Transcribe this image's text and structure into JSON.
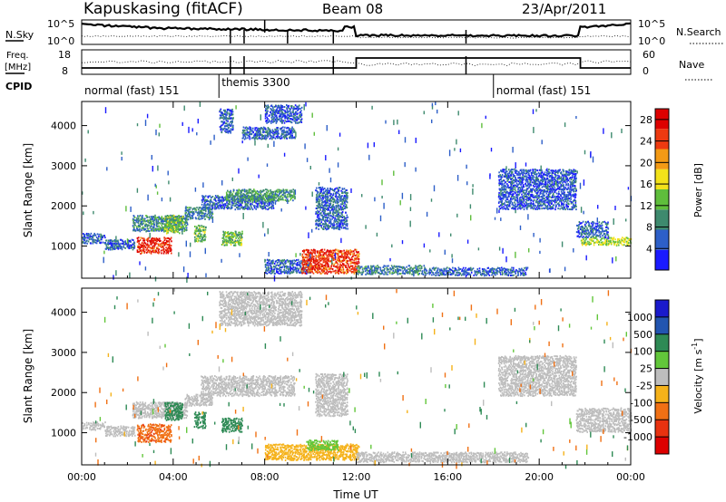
{
  "header": {
    "station": "Kapuskasing (fitACF)",
    "beam": "Beam 08",
    "date": "23/Apr/2011"
  },
  "noise_panel": {
    "left_label": "N.Sky",
    "right_label": "N.Search",
    "left_ticks": [
      "10^5",
      "10^0"
    ],
    "right_ticks": [
      "10^5",
      "10^0"
    ]
  },
  "freq_panel": {
    "left_label_line1": "Freq.",
    "left_label_line2": "[MHz]",
    "right_label": "Nave",
    "left_ticks": [
      "18",
      "8"
    ],
    "right_ticks": [
      "60",
      "0"
    ]
  },
  "cpid": {
    "label": "CPID",
    "segments": [
      {
        "name": "normal (fast) 151",
        "start_hour": 0,
        "end_hour": 6
      },
      {
        "name": "themis 3300",
        "start_hour": 6,
        "end_hour": 18
      },
      {
        "name": "normal (fast) 151",
        "start_hour": 18,
        "end_hour": 24
      }
    ]
  },
  "chart_data": [
    {
      "type": "heatmap",
      "name": "power",
      "ylabel": "Slant Range [km]",
      "xlabel": "",
      "xlim": [
        0,
        24
      ],
      "ylim": [
        200,
        4600
      ],
      "yticks": [
        1000,
        2000,
        3000,
        4000
      ],
      "colorbar": {
        "label": "Power [dB]",
        "ticks": [
          "4",
          "8",
          "12",
          "16",
          "20",
          "24",
          "28"
        ],
        "range": [
          0,
          30
        ],
        "colors": [
          "#1a1aff",
          "#2d5fc8",
          "#3e8a6e",
          "#5fbe3c",
          "#f2e21a",
          "#f39a15",
          "#ee3a10",
          "#dd0000"
        ]
      },
      "regions": [
        {
          "t0": 0.0,
          "t1": 1.0,
          "r0": 1050,
          "r1": 1300,
          "level": 6
        },
        {
          "t0": 1.0,
          "t1": 2.3,
          "r0": 900,
          "r1": 1150,
          "level": 6
        },
        {
          "t0": 2.4,
          "t1": 3.9,
          "r0": 800,
          "r1": 1200,
          "level": 26
        },
        {
          "t0": 2.2,
          "t1": 4.6,
          "r0": 1350,
          "r1": 1750,
          "level": 9
        },
        {
          "t0": 3.6,
          "t1": 4.4,
          "r0": 1300,
          "r1": 1750,
          "level": 13
        },
        {
          "t0": 4.5,
          "t1": 5.7,
          "r0": 1650,
          "r1": 1950,
          "level": 8
        },
        {
          "t0": 4.9,
          "t1": 5.4,
          "r0": 1100,
          "r1": 1500,
          "level": 12
        },
        {
          "t0": 5.2,
          "t1": 8.4,
          "r0": 1900,
          "r1": 2250,
          "level": 6
        },
        {
          "t0": 6.3,
          "t1": 9.3,
          "r0": 2100,
          "r1": 2400,
          "level": 10
        },
        {
          "t0": 6.1,
          "t1": 7.0,
          "r0": 1000,
          "r1": 1350,
          "level": 13
        },
        {
          "t0": 6.0,
          "t1": 6.6,
          "r0": 3800,
          "r1": 4400,
          "level": 6
        },
        {
          "t0": 7.0,
          "t1": 9.3,
          "r0": 3650,
          "r1": 3950,
          "level": 6
        },
        {
          "t0": 8.0,
          "t1": 9.6,
          "r0": 4050,
          "r1": 4500,
          "level": 5
        },
        {
          "t0": 10.2,
          "t1": 11.6,
          "r0": 1400,
          "r1": 2450,
          "level": 6
        },
        {
          "t0": 8.0,
          "t1": 10.0,
          "r0": 300,
          "r1": 650,
          "level": 6
        },
        {
          "t0": 9.6,
          "t1": 12.1,
          "r0": 300,
          "r1": 900,
          "level": 25
        },
        {
          "t0": 12.0,
          "t1": 15.0,
          "r0": 280,
          "r1": 500,
          "level": 8
        },
        {
          "t0": 15.0,
          "t1": 19.5,
          "r0": 250,
          "r1": 450,
          "level": 6
        },
        {
          "t0": 18.2,
          "t1": 21.6,
          "r0": 1900,
          "r1": 2900,
          "level": 5
        },
        {
          "t0": 21.6,
          "t1": 23.0,
          "r0": 1200,
          "r1": 1600,
          "level": 6
        },
        {
          "t0": 21.8,
          "t1": 24.0,
          "r0": 1000,
          "r1": 1200,
          "level": 15
        }
      ]
    },
    {
      "type": "heatmap",
      "name": "velocity",
      "ylabel": "Slant Range [km]",
      "xlabel": "Time UT",
      "xticks": [
        "00:00",
        "04:00",
        "08:00",
        "12:00",
        "16:00",
        "20:00",
        "00:00"
      ],
      "xlim": [
        0,
        24
      ],
      "ylim": [
        200,
        4600
      ],
      "yticks": [
        1000,
        2000,
        3000,
        4000
      ],
      "colorbar": {
        "label": "Velocity [m s^-1]",
        "ticks": [
          "1000",
          "500",
          "100",
          "25",
          "-25",
          "-100",
          "-500",
          "-1000"
        ],
        "colors": [
          "#1a1acc",
          "#2255b0",
          "#2e8a55",
          "#62c63a",
          "#bdbdbd",
          "#f5b21a",
          "#f07014",
          "#e83210",
          "#dd0000"
        ]
      },
      "regions": [
        {
          "t0": 0.0,
          "t1": 1.0,
          "r0": 1050,
          "r1": 1250,
          "level": 0
        },
        {
          "t0": 1.0,
          "t1": 2.3,
          "r0": 900,
          "r1": 1150,
          "level": 0
        },
        {
          "t0": 2.4,
          "t1": 3.9,
          "r0": 750,
          "r1": 1200,
          "level": -400
        },
        {
          "t0": 2.2,
          "t1": 4.6,
          "r0": 1350,
          "r1": 1750,
          "level": 0
        },
        {
          "t0": 3.6,
          "t1": 4.4,
          "r0": 1300,
          "r1": 1750,
          "level": 300
        },
        {
          "t0": 4.5,
          "t1": 5.7,
          "r0": 1650,
          "r1": 1950,
          "level": 0
        },
        {
          "t0": 4.9,
          "t1": 5.4,
          "r0": 1100,
          "r1": 1500,
          "level": 300
        },
        {
          "t0": 5.2,
          "t1": 9.3,
          "r0": 1900,
          "r1": 2400,
          "level": 0
        },
        {
          "t0": 6.1,
          "t1": 7.0,
          "r0": 1000,
          "r1": 1350,
          "level": 300
        },
        {
          "t0": 6.0,
          "t1": 9.6,
          "r0": 3650,
          "r1": 4500,
          "level": 0
        },
        {
          "t0": 10.2,
          "t1": 11.6,
          "r0": 1400,
          "r1": 2450,
          "level": 0
        },
        {
          "t0": 8.0,
          "t1": 12.1,
          "r0": 300,
          "r1": 700,
          "level": -60
        },
        {
          "t0": 9.8,
          "t1": 11.2,
          "r0": 550,
          "r1": 800,
          "level": 60
        },
        {
          "t0": 12.0,
          "t1": 19.5,
          "r0": 250,
          "r1": 500,
          "level": 0
        },
        {
          "t0": 18.2,
          "t1": 21.6,
          "r0": 1900,
          "r1": 2900,
          "level": 0
        },
        {
          "t0": 21.6,
          "t1": 24.0,
          "r0": 1000,
          "r1": 1600,
          "level": 0
        }
      ]
    }
  ]
}
